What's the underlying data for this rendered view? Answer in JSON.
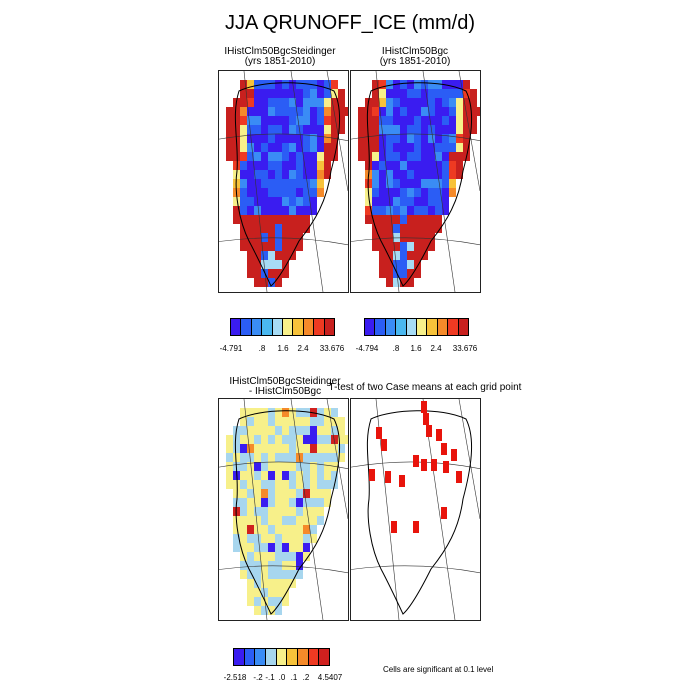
{
  "figure": {
    "title": "JJA QRUNOFF_ICE (mm/d)",
    "panels": [
      {
        "title_line1": "IHistClm50BgcSteidinger",
        "title_line2": "(yrs 1851-2010)"
      },
      {
        "title_line1": "IHistClm50Bgc",
        "title_line2": "(yrs 1851-2010)"
      },
      {
        "title_line1": "IHistClm50BgcSteidinger",
        "title_line2": "- IHistClm50Bgc"
      },
      {
        "title_line1": "T-test of two Case means at each grid point",
        "title_line2": ""
      }
    ],
    "significance_note": "Cells are significant at 0.1 level"
  },
  "colors": {
    "abs_palette": [
      "#3a1cf0",
      "#2b5df5",
      "#3a8cf5",
      "#4ab8f0",
      "#a7dcf5",
      "#f7f08a",
      "#f7c23a",
      "#f58a2a",
      "#ee3a22",
      "#c8201e"
    ],
    "diff_palette": [
      "#3a1cf0",
      "#2b5df5",
      "#3a8cf5",
      "#a7d6ee",
      "#f7f08a",
      "#f7c23a",
      "#f58a2a",
      "#ee3a22",
      "#d0201e"
    ],
    "signif": "#e8140c"
  },
  "chart_data": [
    {
      "type": "heatmap",
      "title": "IHistClm50BgcSteidinger (yrs 1851-2010)",
      "colorbar": {
        "labels": [
          "-4.791",
          ".8",
          "1.6",
          "2.4",
          "33.676"
        ],
        "levels": 10
      },
      "description": "Greenland ice runoff map; interior strongly negative (blue), margins high (red)"
    },
    {
      "type": "heatmap",
      "title": "IHistClm50Bgc (yrs 1851-2010)",
      "colorbar": {
        "labels": [
          "-4.794",
          ".8",
          "1.6",
          "2.4",
          "33.676"
        ],
        "levels": 10
      }
    },
    {
      "type": "heatmap",
      "title": "IHistClm50BgcSteidinger - IHistClm50Bgc",
      "colorbar": {
        "labels": [
          "-2.518",
          "-.2",
          "-.1",
          ".0",
          ".1",
          ".2",
          "4.5407"
        ],
        "levels": 9
      }
    },
    {
      "type": "heatmap",
      "title": "T-test of two Case means at each grid point",
      "legend": "Cells are significant at 0.1 level"
    }
  ]
}
